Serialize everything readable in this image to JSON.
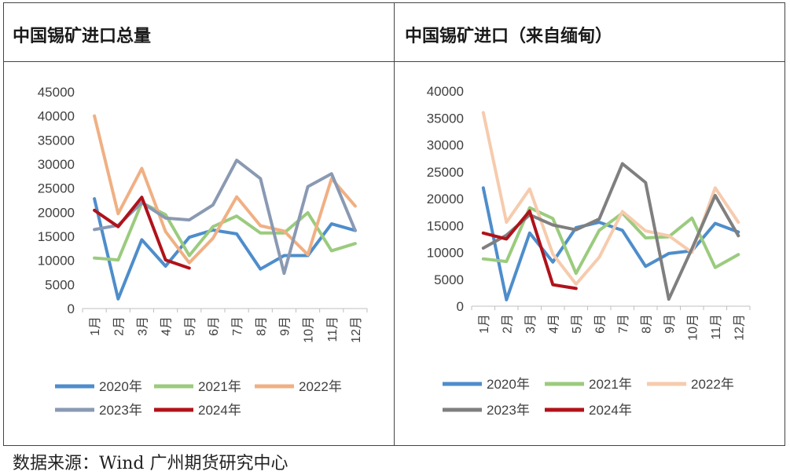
{
  "left_title": "中国锡矿进口总量",
  "right_title": "中国锡矿进口（来自缅甸）",
  "source": "数据来源：Wind 广州期货研究中心",
  "colors": {
    "2020年": "#4E8DCB",
    "2021年": "#9BCB7E",
    "2022年": "#F0B083",
    "2023年": "#8A99B3",
    "2024年": "#B0121A"
  },
  "chart_data": [
    {
      "type": "line",
      "title": "中国锡矿进口总量",
      "categories": [
        "1月",
        "2月",
        "3月",
        "4月",
        "5月",
        "6月",
        "7月",
        "8月",
        "9月",
        "10月",
        "11月",
        "12月"
      ],
      "ylim": [
        0,
        45000
      ],
      "yticks": [
        0,
        5000,
        10000,
        15000,
        20000,
        25000,
        30000,
        35000,
        40000,
        45000
      ],
      "grid": false,
      "legend": "bottom",
      "series": [
        {
          "name": "2020年",
          "color": "#4E8DCB",
          "values": [
            22800,
            2000,
            14300,
            8800,
            14800,
            16300,
            15500,
            8200,
            11000,
            11000,
            17600,
            16200
          ]
        },
        {
          "name": "2021年",
          "color": "#9BCB7E",
          "values": [
            10500,
            10100,
            22000,
            19500,
            11000,
            17000,
            19200,
            15700,
            15700,
            19900,
            12000,
            13500
          ]
        },
        {
          "name": "2022年",
          "color": "#F0B083",
          "values": [
            40000,
            19700,
            29100,
            16000,
            9500,
            14600,
            23200,
            17200,
            16100,
            11200,
            27000,
            21300
          ]
        },
        {
          "name": "2023年",
          "color": "#8A99B3",
          "values": [
            16400,
            17300,
            22000,
            18800,
            18400,
            21500,
            30800,
            27000,
            7300,
            25300,
            28000,
            16200
          ]
        },
        {
          "name": "2024年",
          "color": "#B0121A",
          "values": [
            20400,
            17000,
            23100,
            10100,
            8400,
            null,
            null,
            null,
            null,
            null,
            null,
            null
          ]
        }
      ]
    },
    {
      "type": "line",
      "title": "中国锡矿进口（来自缅甸）",
      "categories": [
        "1月",
        "2月",
        "3月",
        "4月",
        "5月",
        "6月",
        "7月",
        "8月",
        "9月",
        "10月",
        "11月",
        "12月"
      ],
      "ylim": [
        0,
        40000
      ],
      "yticks": [
        0,
        5000,
        10000,
        15000,
        20000,
        25000,
        30000,
        35000,
        40000
      ],
      "grid": false,
      "legend": "bottom",
      "series": [
        {
          "name": "2020年",
          "color": "#4E8DCB",
          "values": [
            22000,
            1200,
            13600,
            8200,
            14600,
            15600,
            14100,
            7400,
            9800,
            10300,
            15400,
            13800
          ]
        },
        {
          "name": "2021年",
          "color": "#9BCB7E",
          "values": [
            8800,
            8300,
            18300,
            16300,
            6100,
            14100,
            17300,
            12700,
            12900,
            16400,
            7200,
            9600
          ]
        },
        {
          "name": "2022年",
          "color": "#F6CBAD",
          "values": [
            36000,
            15600,
            21800,
            9700,
            4100,
            9100,
            17600,
            14000,
            13100,
            10000,
            22000,
            15600
          ]
        },
        {
          "name": "2023年",
          "color": "#7F7F7F",
          "values": [
            10800,
            13200,
            17000,
            15100,
            14200,
            16200,
            26500,
            23000,
            1300,
            10700,
            20600,
            13100
          ]
        },
        {
          "name": "2024年",
          "color": "#B0121A",
          "values": [
            13600,
            12500,
            17700,
            4000,
            3300,
            null,
            null,
            null,
            null,
            null,
            null,
            null
          ]
        }
      ]
    }
  ]
}
